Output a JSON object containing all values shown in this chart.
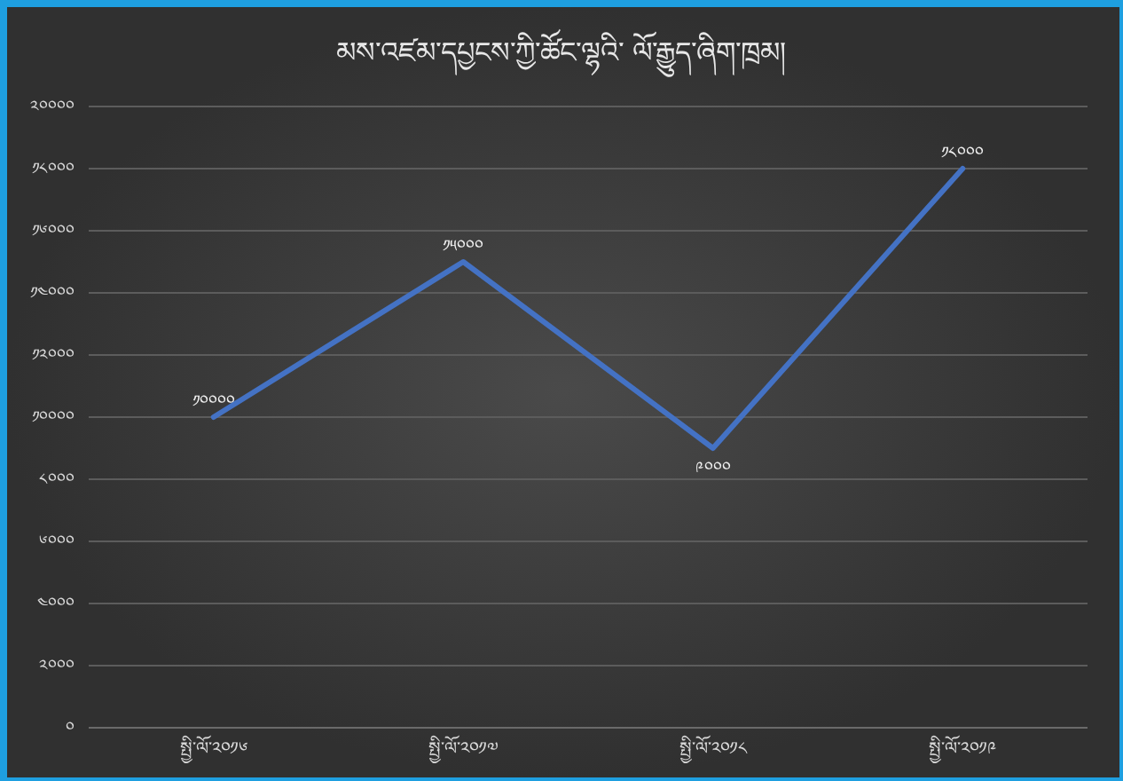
{
  "chart_data": {
    "type": "line",
    "title": "མས་འཛམ་དཔྱངས་ཀྱི་ཚོང་ལྷའི་ ལོ་རྒྱུད་ཞིག་ཁྲམ།",
    "categories": [
      "སྤྱི་ལོ་༢༠༡༦",
      "སྤྱི་ལོ་༢༠༡༧",
      "སྤྱི་ལོ་༢༠༡༨",
      "སྤྱི་ལོ་༢༠༡༩"
    ],
    "series": [
      {
        "color": "#4472c4",
        "values": [
          10000,
          15000,
          9000,
          18000
        ],
        "value_labels": [
          "༡༠༠༠༠",
          "༡༥༠༠༠",
          "༩༠༠༠",
          "༡༨༠༠༠"
        ]
      }
    ],
    "ylim": [
      0,
      20000
    ],
    "yticks": [
      {
        "value": 0,
        "label": "༠"
      },
      {
        "value": 2000,
        "label": "༢༠༠༠"
      },
      {
        "value": 4000,
        "label": "༤༠༠༠"
      },
      {
        "value": 6000,
        "label": "༦༠༠༠"
      },
      {
        "value": 8000,
        "label": "༨༠༠༠"
      },
      {
        "value": 10000,
        "label": "༡༠༠༠༠"
      },
      {
        "value": 12000,
        "label": "༡༢༠༠༠"
      },
      {
        "value": 14000,
        "label": "༡༤༠༠༠"
      },
      {
        "value": 16000,
        "label": "༡༦༠༠༠"
      },
      {
        "value": 18000,
        "label": "༡༨༠༠༠"
      },
      {
        "value": 20000,
        "label": "༢༠༠༠༠"
      }
    ],
    "grid": "y",
    "marker": "none",
    "line_style": "solid"
  }
}
